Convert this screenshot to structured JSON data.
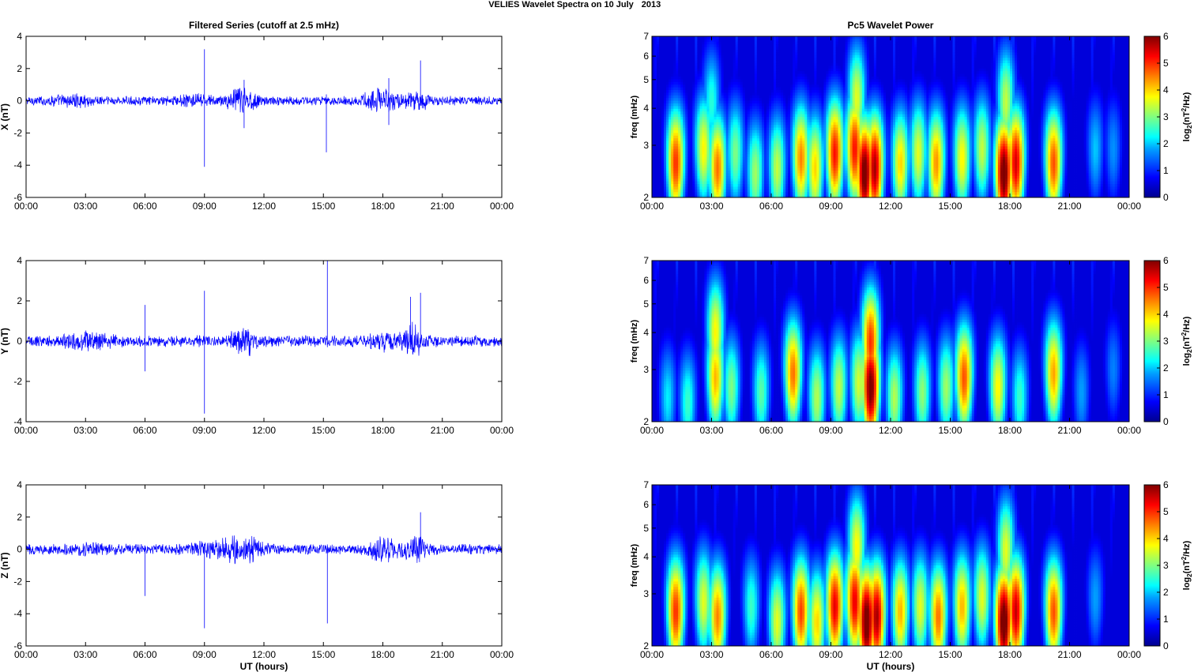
{
  "figure": {
    "title_left": "VELIES Wavelet Spectra on 10 July",
    "title_right": "2013",
    "left_column_title": "Filtered Series (cutoff at 2.5 mHz)",
    "right_column_title": "Pc5 Wavelet Power",
    "xlabel": "UT (hours)",
    "freq_ylabel": "freq (mHz)",
    "colorbar_label": "log2(nT2/Hz)",
    "colormap": [
      "#00008f",
      "#0000ff",
      "#00a0ff",
      "#00ffff",
      "#80ff80",
      "#ffff00",
      "#ff8000",
      "#ff0000",
      "#800000"
    ],
    "series_color": "#0000ff"
  },
  "chart_data": [
    {
      "type": "line",
      "title": "Filtered Series (cutoff at 2.5 mHz)",
      "ylabel": "X (nT)",
      "xlabel": "",
      "x_ticks": [
        "00:00",
        "03:00",
        "06:00",
        "09:00",
        "12:00",
        "15:00",
        "18:00",
        "21:00",
        "00:00"
      ],
      "x_range_hours": [
        0,
        24
      ],
      "ylim": [
        -6,
        4
      ],
      "y_ticks": [
        4,
        2,
        0,
        -2,
        -4,
        -6
      ],
      "noise_amplitude": 0.22,
      "bursts": [
        {
          "center": 10.9,
          "width": 0.7,
          "amp": 0.55
        },
        {
          "center": 17.9,
          "width": 0.8,
          "amp": 0.5
        },
        {
          "center": 19.7,
          "width": 0.6,
          "amp": 0.45
        },
        {
          "center": 2.5,
          "width": 1.2,
          "amp": 0.15
        },
        {
          "center": 8.5,
          "width": 1.0,
          "amp": 0.15
        }
      ],
      "spikes": [
        {
          "t": 9.0,
          "hi": 3.2,
          "lo": -4.1
        },
        {
          "t": 15.15,
          "hi": 0.4,
          "lo": -3.2
        },
        {
          "t": 19.9,
          "hi": 2.5,
          "lo": -0.3
        },
        {
          "t": 18.3,
          "hi": 1.4,
          "lo": -1.5
        },
        {
          "t": 11.0,
          "hi": 1.3,
          "lo": -1.7
        }
      ]
    },
    {
      "type": "line",
      "title": "",
      "ylabel": "Y (nT)",
      "xlabel": "",
      "x_ticks": [
        "00:00",
        "03:00",
        "06:00",
        "09:00",
        "12:00",
        "15:00",
        "18:00",
        "21:00",
        "00:00"
      ],
      "x_range_hours": [
        0,
        24
      ],
      "ylim": [
        -4,
        4
      ],
      "y_ticks": [
        4,
        2,
        0,
        -2,
        -4
      ],
      "noise_amplitude": 0.22,
      "bursts": [
        {
          "center": 11.0,
          "width": 0.6,
          "amp": 0.45
        },
        {
          "center": 19.5,
          "width": 0.5,
          "amp": 0.5
        },
        {
          "center": 3.0,
          "width": 1.2,
          "amp": 0.2
        },
        {
          "center": 18.0,
          "width": 0.8,
          "amp": 0.25
        }
      ],
      "spikes": [
        {
          "t": 6.0,
          "hi": 1.8,
          "lo": -1.5
        },
        {
          "t": 9.0,
          "hi": 2.5,
          "lo": -3.6
        },
        {
          "t": 15.2,
          "hi": 4.0,
          "lo": -0.3
        },
        {
          "t": 19.4,
          "hi": 2.2,
          "lo": -0.4
        },
        {
          "t": 19.9,
          "hi": 2.4,
          "lo": -0.3
        }
      ]
    },
    {
      "type": "line",
      "title": "",
      "ylabel": "Z (nT)",
      "xlabel": "UT (hours)",
      "x_ticks": [
        "00:00",
        "03:00",
        "06:00",
        "09:00",
        "12:00",
        "15:00",
        "18:00",
        "21:00",
        "00:00"
      ],
      "x_range_hours": [
        0,
        24
      ],
      "ylim": [
        -6,
        4
      ],
      "y_ticks": [
        4,
        2,
        0,
        -2,
        -4,
        -6
      ],
      "noise_amplitude": 0.25,
      "bursts": [
        {
          "center": 11.0,
          "width": 0.8,
          "amp": 0.55
        },
        {
          "center": 18.0,
          "width": 0.8,
          "amp": 0.5
        },
        {
          "center": 19.7,
          "width": 0.6,
          "amp": 0.45
        },
        {
          "center": 9.5,
          "width": 1.0,
          "amp": 0.3
        },
        {
          "center": 3.0,
          "width": 1.0,
          "amp": 0.15
        }
      ],
      "spikes": [
        {
          "t": 6.0,
          "hi": 0.2,
          "lo": -2.9
        },
        {
          "t": 9.0,
          "hi": 0.3,
          "lo": -4.9
        },
        {
          "t": 15.2,
          "hi": 0.3,
          "lo": -4.6
        },
        {
          "t": 19.9,
          "hi": 2.3,
          "lo": -0.3
        }
      ]
    },
    {
      "type": "heatmap",
      "title": "Pc5 Wavelet Power",
      "ylabel": "freq (mHz)",
      "xlabel": "",
      "x_ticks": [
        "00:00",
        "03:00",
        "06:00",
        "09:00",
        "12:00",
        "15:00",
        "18:00",
        "21:00",
        "00:00"
      ],
      "y_scale": "log",
      "y_range_mhz": [
        2,
        7
      ],
      "y_ticks": [
        2,
        3,
        4,
        5,
        6,
        7
      ],
      "colorbar_range": [
        0,
        6
      ],
      "colorbar_ticks": [
        0,
        1,
        2,
        3,
        4,
        5,
        6
      ],
      "blobs": [
        {
          "t": 1.2,
          "f": 2.6,
          "p": 5.0
        },
        {
          "t": 2.6,
          "f": 2.9,
          "p": 3.8
        },
        {
          "t": 3.3,
          "f": 2.5,
          "p": 4.6
        },
        {
          "t": 4.2,
          "f": 2.8,
          "p": 3.0
        },
        {
          "t": 5.2,
          "f": 2.4,
          "p": 3.2
        },
        {
          "t": 6.3,
          "f": 2.5,
          "p": 3.4
        },
        {
          "t": 7.5,
          "f": 2.7,
          "p": 4.5
        },
        {
          "t": 8.2,
          "f": 2.5,
          "p": 4.0
        },
        {
          "t": 9.2,
          "f": 2.8,
          "p": 5.2
        },
        {
          "t": 10.2,
          "f": 2.9,
          "p": 5.2
        },
        {
          "t": 10.7,
          "f": 2.4,
          "p": 6.3
        },
        {
          "t": 11.2,
          "f": 2.5,
          "p": 5.8
        },
        {
          "t": 12.5,
          "f": 2.6,
          "p": 4.0
        },
        {
          "t": 13.4,
          "f": 2.8,
          "p": 3.6
        },
        {
          "t": 14.3,
          "f": 2.6,
          "p": 4.4
        },
        {
          "t": 15.6,
          "f": 2.7,
          "p": 3.8
        },
        {
          "t": 16.6,
          "f": 2.9,
          "p": 3.4
        },
        {
          "t": 17.7,
          "f": 2.4,
          "p": 6.3
        },
        {
          "t": 18.3,
          "f": 2.6,
          "p": 5.5
        },
        {
          "t": 20.2,
          "f": 2.6,
          "p": 4.8
        },
        {
          "t": 22.3,
          "f": 2.9,
          "p": 2.0
        },
        {
          "t": 23.2,
          "f": 2.9,
          "p": 1.7
        },
        {
          "t": 10.3,
          "f": 4.3,
          "p": 3.6
        },
        {
          "t": 17.8,
          "f": 4.2,
          "p": 3.4
        },
        {
          "t": 3.0,
          "f": 4.2,
          "p": 2.5
        }
      ]
    },
    {
      "type": "heatmap",
      "title": "",
      "ylabel": "freq (mHz)",
      "xlabel": "",
      "x_ticks": [
        "00:00",
        "03:00",
        "06:00",
        "09:00",
        "12:00",
        "15:00",
        "18:00",
        "21:00",
        "00:00"
      ],
      "y_scale": "log",
      "y_range_mhz": [
        2,
        7
      ],
      "y_ticks": [
        2,
        3,
        4,
        5,
        6,
        7
      ],
      "colorbar_range": [
        0,
        6
      ],
      "colorbar_ticks": [
        0,
        1,
        2,
        3,
        4,
        5,
        6
      ],
      "blobs": [
        {
          "t": 0.8,
          "f": 2.4,
          "p": 2.2
        },
        {
          "t": 1.8,
          "f": 2.3,
          "p": 2.6
        },
        {
          "t": 3.2,
          "f": 2.8,
          "p": 4.2
        },
        {
          "t": 3.2,
          "f": 4.0,
          "p": 3.8
        },
        {
          "t": 4.0,
          "f": 2.6,
          "p": 3.0
        },
        {
          "t": 5.5,
          "f": 2.5,
          "p": 2.8
        },
        {
          "t": 7.1,
          "f": 2.9,
          "p": 4.6
        },
        {
          "t": 8.3,
          "f": 2.4,
          "p": 3.3
        },
        {
          "t": 9.4,
          "f": 2.6,
          "p": 3.4
        },
        {
          "t": 10.4,
          "f": 2.7,
          "p": 3.5
        },
        {
          "t": 11.0,
          "f": 2.6,
          "p": 6.2
        },
        {
          "t": 11.0,
          "f": 3.7,
          "p": 5.0
        },
        {
          "t": 12.2,
          "f": 2.4,
          "p": 3.3
        },
        {
          "t": 13.6,
          "f": 2.5,
          "p": 3.1
        },
        {
          "t": 14.8,
          "f": 2.6,
          "p": 3.2
        },
        {
          "t": 15.7,
          "f": 2.8,
          "p": 4.8
        },
        {
          "t": 17.4,
          "f": 2.6,
          "p": 3.8
        },
        {
          "t": 18.5,
          "f": 2.4,
          "p": 2.6
        },
        {
          "t": 20.2,
          "f": 2.9,
          "p": 4.3
        },
        {
          "t": 21.6,
          "f": 2.5,
          "p": 1.8
        },
        {
          "t": 23.2,
          "f": 3.0,
          "p": 1.6
        }
      ]
    },
    {
      "type": "heatmap",
      "title": "",
      "ylabel": "freq (mHz)",
      "xlabel": "UT (hours)",
      "x_ticks": [
        "00:00",
        "03:00",
        "06:00",
        "09:00",
        "12:00",
        "15:00",
        "18:00",
        "21:00",
        "00:00"
      ],
      "y_scale": "log",
      "y_range_mhz": [
        2,
        7
      ],
      "y_ticks": [
        2,
        3,
        4,
        5,
        6,
        7
      ],
      "colorbar_range": [
        0,
        6
      ],
      "colorbar_ticks": [
        0,
        1,
        2,
        3,
        4,
        5,
        6
      ],
      "blobs": [
        {
          "t": 1.2,
          "f": 2.6,
          "p": 5.0
        },
        {
          "t": 2.6,
          "f": 2.8,
          "p": 3.6
        },
        {
          "t": 3.3,
          "f": 2.5,
          "p": 4.5
        },
        {
          "t": 5.0,
          "f": 2.7,
          "p": 2.6
        },
        {
          "t": 6.3,
          "f": 2.4,
          "p": 3.6
        },
        {
          "t": 7.5,
          "f": 2.6,
          "p": 4.9
        },
        {
          "t": 8.3,
          "f": 2.4,
          "p": 4.0
        },
        {
          "t": 9.2,
          "f": 2.7,
          "p": 5.4
        },
        {
          "t": 10.2,
          "f": 2.8,
          "p": 5.4
        },
        {
          "t": 10.8,
          "f": 2.4,
          "p": 6.4
        },
        {
          "t": 11.3,
          "f": 2.5,
          "p": 5.8
        },
        {
          "t": 12.5,
          "f": 2.6,
          "p": 4.2
        },
        {
          "t": 13.5,
          "f": 2.7,
          "p": 3.6
        },
        {
          "t": 14.4,
          "f": 2.5,
          "p": 4.6
        },
        {
          "t": 15.6,
          "f": 2.7,
          "p": 4.2
        },
        {
          "t": 16.6,
          "f": 2.9,
          "p": 3.6
        },
        {
          "t": 17.7,
          "f": 2.4,
          "p": 6.4
        },
        {
          "t": 18.3,
          "f": 2.6,
          "p": 5.6
        },
        {
          "t": 20.2,
          "f": 2.6,
          "p": 4.8
        },
        {
          "t": 22.3,
          "f": 2.9,
          "p": 1.8
        },
        {
          "t": 10.3,
          "f": 4.3,
          "p": 3.8
        },
        {
          "t": 17.8,
          "f": 4.2,
          "p": 3.6
        }
      ]
    }
  ]
}
